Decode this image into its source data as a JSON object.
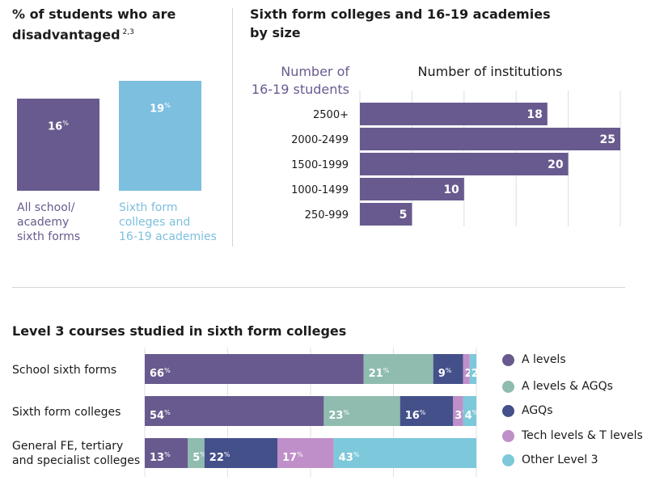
{
  "disadvantaged": {
    "title_line1": "% of students who are",
    "title_line2": "disadvantaged",
    "footnote": "2,3",
    "unit": "%",
    "bars": [
      {
        "value": 16,
        "label_lines": [
          "All school/",
          "academy",
          "sixth forms"
        ],
        "color": "#685a8e"
      },
      {
        "value": 19,
        "label_lines": [
          "Sixth form",
          "colleges and",
          "16-19 academies"
        ],
        "color": "#7cbfdf"
      }
    ]
  },
  "by_size": {
    "title_line1": "Sixth form colleges and 16-19 academies",
    "title_line2": "by size",
    "ylabel_line1": "Number of",
    "ylabel_line2": "16-19 students",
    "xlabel": "Number of institutions",
    "color": "#685a8e",
    "label_color": "#6a5a91"
  },
  "courses": {
    "title": "Level 3 courses studied in sixth form colleges",
    "unit": "%"
  },
  "chart_data": [
    {
      "type": "bar",
      "categories": [
        "All school/academy sixth forms",
        "Sixth form colleges and 16-19 academies"
      ],
      "values": [
        16,
        19
      ],
      "title": "% of students who are disadvantaged",
      "ylim": [
        0,
        20
      ]
    },
    {
      "type": "bar",
      "orientation": "horizontal",
      "title": "Sixth form colleges and 16-19 academies by size",
      "xlabel": "Number of institutions",
      "ylabel": "Number of 16-19 students",
      "categories": [
        "2500+",
        "2000-2499",
        "1500-1999",
        "1000-1499",
        "250-999"
      ],
      "values": [
        18,
        25,
        20,
        10,
        5
      ],
      "xlim": [
        0,
        25
      ],
      "grid": true
    },
    {
      "type": "bar",
      "orientation": "horizontal",
      "stacked": true,
      "title": "Level 3 courses studied in sixth form colleges",
      "categories": [
        "School sixth forms",
        "Sixth form colleges",
        "General FE, tertiary and specialist colleges"
      ],
      "category_lines": [
        [
          "School sixth forms"
        ],
        [
          "Sixth form colleges"
        ],
        [
          "General FE, tertiary",
          "and specialist colleges"
        ]
      ],
      "series": [
        {
          "name": "A levels",
          "color": "#685a8e",
          "values": [
            66,
            54,
            13
          ]
        },
        {
          "name": "A levels & AGQs",
          "color": "#8fbcaf",
          "values": [
            21,
            23,
            5
          ]
        },
        {
          "name": "AGQs",
          "color": "#44508a",
          "values": [
            9,
            16,
            22
          ]
        },
        {
          "name": "Tech levels & T levels",
          "color": "#bf8fc9",
          "values": [
            2,
            3,
            17
          ]
        },
        {
          "name": "Other Level 3",
          "color": "#7dc8da",
          "values": [
            2,
            4,
            43
          ]
        }
      ],
      "xlim": [
        0,
        100
      ],
      "legend": "right"
    }
  ]
}
